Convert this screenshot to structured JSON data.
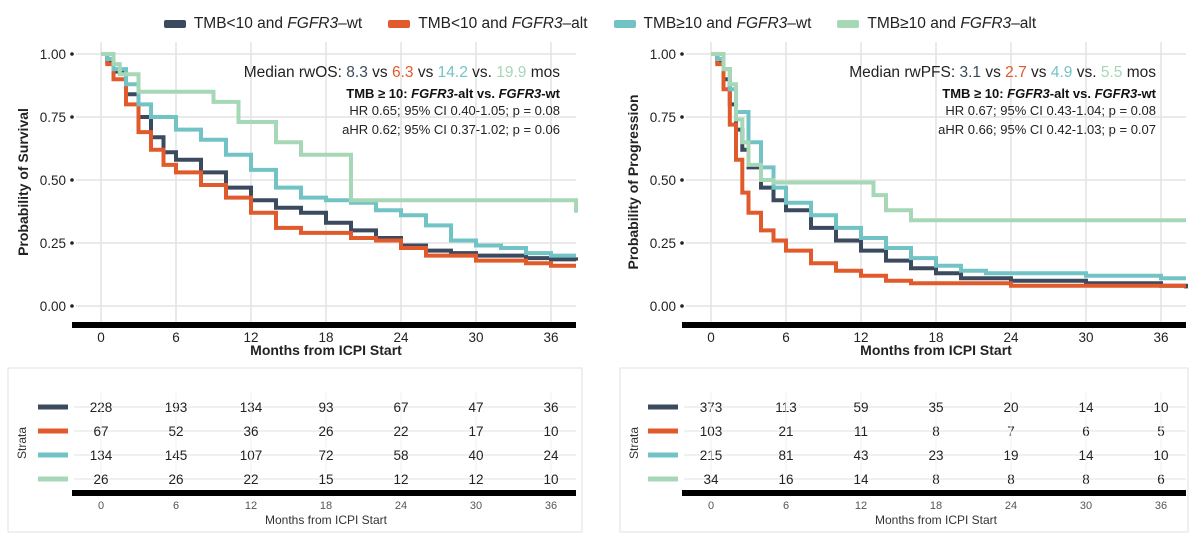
{
  "legend": {
    "items": [
      {
        "pre": "TMB<10 and ",
        "gene": "FGFR3",
        "post": "–wt",
        "color": "#3b4a5e"
      },
      {
        "pre": "TMB<10 and ",
        "gene": "FGFR3",
        "post": "–alt",
        "color": "#e15a2b"
      },
      {
        "pre": "TMB≥10 and ",
        "gene": "FGFR3",
        "post": "–wt",
        "color": "#72c3c6"
      },
      {
        "pre": "TMB≥10 and ",
        "gene": "FGFR3",
        "post": "–alt",
        "color": "#a6d7b6"
      }
    ]
  },
  "chart_data": [
    {
      "type": "line",
      "xlabel": "Months from ICPI Start",
      "ylabel": "Probability of Survival",
      "xlim": [
        -2,
        38
      ],
      "ylim": [
        0,
        1
      ],
      "xticks": [
        0,
        6,
        12,
        18,
        24,
        30,
        36
      ],
      "yticks": [
        0,
        0.25,
        0.5,
        0.75,
        1
      ],
      "ytick_labels": [
        "0.00",
        "0.25",
        "0.50",
        "0.75",
        "1.00"
      ],
      "grid": true,
      "annotation": {
        "median_prefix": "Median rwOS: ",
        "medians": [
          "8.3",
          "6.3",
          "14.2",
          "19.9"
        ],
        "separators": [
          " vs ",
          " vs ",
          " vs. "
        ],
        "suffix": " mos",
        "bold_line": {
          "pre": "TMB ≥ 10: ",
          "gene1": "FGFR3",
          "mid": "-alt vs. ",
          "gene2": "FGFR3",
          "post": "-wt"
        },
        "hr": "HR 0.65; 95% CI 0.40-1.05; p = 0.08",
        "ahr": "aHR 0.62; 95% CI 0.37-1.02; p = 0.06"
      },
      "series": [
        {
          "color": "#3b4a5e",
          "x": [
            0,
            0.5,
            1,
            2,
            3,
            4,
            5,
            6,
            8,
            10,
            12,
            14,
            16,
            18,
            20,
            22,
            24,
            26,
            28,
            30,
            32,
            34,
            36,
            38
          ],
          "y": [
            1,
            0.97,
            0.93,
            0.84,
            0.75,
            0.67,
            0.61,
            0.58,
            0.53,
            0.47,
            0.42,
            0.39,
            0.37,
            0.33,
            0.3,
            0.27,
            0.24,
            0.22,
            0.21,
            0.2,
            0.2,
            0.19,
            0.185,
            0.18
          ]
        },
        {
          "color": "#e15a2b",
          "x": [
            0,
            0.5,
            1,
            2,
            3,
            4,
            5,
            6,
            8,
            10,
            12,
            14,
            16,
            18,
            20,
            22,
            24,
            26,
            28,
            30,
            32,
            34,
            36,
            38
          ],
          "y": [
            1,
            0.96,
            0.9,
            0.8,
            0.69,
            0.62,
            0.56,
            0.53,
            0.48,
            0.43,
            0.37,
            0.31,
            0.29,
            0.29,
            0.27,
            0.26,
            0.23,
            0.2,
            0.2,
            0.18,
            0.18,
            0.17,
            0.16,
            0.16
          ]
        },
        {
          "color": "#72c3c6",
          "x": [
            0,
            0.5,
            1,
            2,
            3,
            4,
            6,
            8,
            10,
            12,
            14,
            16,
            18,
            20,
            22,
            24,
            26,
            28,
            30,
            32,
            34,
            36,
            38
          ],
          "y": [
            1,
            0.98,
            0.94,
            0.88,
            0.8,
            0.75,
            0.7,
            0.66,
            0.6,
            0.54,
            0.47,
            0.43,
            0.42,
            0.41,
            0.38,
            0.36,
            0.32,
            0.26,
            0.24,
            0.23,
            0.21,
            0.2,
            0.2
          ]
        },
        {
          "color": "#a6d7b6",
          "x": [
            0,
            0.5,
            1,
            1.5,
            3,
            4.5,
            9,
            11,
            14,
            16,
            20,
            22,
            24,
            26,
            28,
            30,
            32,
            34,
            36,
            37.5,
            38
          ],
          "y": [
            1,
            1,
            0.96,
            0.92,
            0.85,
            0.85,
            0.81,
            0.73,
            0.65,
            0.6,
            0.42,
            0.42,
            0.42,
            0.42,
            0.42,
            0.42,
            0.42,
            0.42,
            0.42,
            0.42,
            0.37
          ]
        }
      ]
    },
    {
      "type": "line",
      "xlabel": "Months from ICPI Start",
      "ylabel": "Probability of Progression",
      "xlim": [
        -2,
        38
      ],
      "ylim": [
        0,
        1
      ],
      "xticks": [
        0,
        6,
        12,
        18,
        24,
        30,
        36
      ],
      "yticks": [
        0,
        0.25,
        0.5,
        0.75,
        1
      ],
      "ytick_labels": [
        "0.00",
        "0.25",
        "0.50",
        "0.75",
        "1.00"
      ],
      "grid": true,
      "annotation": {
        "median_prefix": "Median rwPFS: ",
        "medians": [
          "3.1",
          "2.7",
          "4.9",
          "5.5"
        ],
        "separators": [
          " vs ",
          " vs ",
          " vs. "
        ],
        "suffix": " mos",
        "bold_line": {
          "pre": "TMB ≥ 10: ",
          "gene1": "FGFR3",
          "mid": "-alt vs. ",
          "gene2": "FGFR3",
          "post": "-wt"
        },
        "hr": "HR 0.67; 95% CI 0.43-1.04; p = 0.08",
        "ahr": "aHR 0.66; 95% CI 0.42-1.03; p = 0.07"
      },
      "series": [
        {
          "color": "#3b4a5e",
          "x": [
            0,
            0.5,
            1,
            1.5,
            2,
            2.5,
            3,
            4,
            5,
            6,
            8,
            10,
            12,
            14,
            16,
            18,
            20,
            24,
            30,
            36,
            38
          ],
          "y": [
            1,
            0.97,
            0.9,
            0.8,
            0.7,
            0.62,
            0.55,
            0.47,
            0.42,
            0.38,
            0.31,
            0.26,
            0.22,
            0.18,
            0.15,
            0.13,
            0.11,
            0.1,
            0.09,
            0.08,
            0.07
          ]
        },
        {
          "color": "#e15a2b",
          "x": [
            0,
            0.5,
            1,
            1.5,
            2,
            2.5,
            3,
            4,
            5,
            6,
            8,
            10,
            12,
            14,
            16,
            20,
            24,
            30,
            36,
            38
          ],
          "y": [
            1,
            0.96,
            0.86,
            0.72,
            0.58,
            0.45,
            0.37,
            0.3,
            0.26,
            0.22,
            0.17,
            0.14,
            0.12,
            0.1,
            0.09,
            0.09,
            0.08,
            0.08,
            0.08,
            0.08
          ]
        },
        {
          "color": "#72c3c6",
          "x": [
            0,
            0.5,
            1,
            1.5,
            2,
            3,
            4,
            5,
            6,
            8,
            10,
            12,
            14,
            16,
            18,
            20,
            22,
            24,
            30,
            36,
            38
          ],
          "y": [
            1,
            0.98,
            0.94,
            0.86,
            0.77,
            0.65,
            0.55,
            0.47,
            0.41,
            0.36,
            0.31,
            0.27,
            0.23,
            0.19,
            0.16,
            0.14,
            0.13,
            0.13,
            0.12,
            0.11,
            0.11
          ]
        },
        {
          "color": "#a6d7b6",
          "x": [
            0,
            0.5,
            1,
            1.5,
            2,
            2.5,
            3,
            4,
            5,
            6,
            8,
            10,
            12,
            13,
            14,
            16,
            20,
            24,
            30,
            36,
            38
          ],
          "y": [
            1,
            1,
            0.94,
            0.88,
            0.74,
            0.65,
            0.56,
            0.5,
            0.49,
            0.49,
            0.49,
            0.49,
            0.49,
            0.44,
            0.38,
            0.34,
            0.34,
            0.34,
            0.34,
            0.34,
            0.34
          ]
        }
      ]
    }
  ],
  "risk_tables": [
    {
      "ylabel": "Strata",
      "xlabel": "Months from ICPI Start",
      "xticks": [
        0,
        6,
        12,
        18,
        24,
        30,
        36
      ],
      "rows": [
        {
          "color": "#3b4a5e",
          "values": [
            228,
            193,
            134,
            93,
            67,
            47,
            36
          ]
        },
        {
          "color": "#e15a2b",
          "values": [
            67,
            52,
            36,
            26,
            22,
            17,
            10
          ]
        },
        {
          "color": "#72c3c6",
          "values": [
            134,
            145,
            107,
            72,
            58,
            40,
            24
          ]
        },
        {
          "color": "#a6d7b6",
          "values": [
            26,
            26,
            22,
            15,
            12,
            12,
            10
          ]
        }
      ]
    },
    {
      "ylabel": "Strata",
      "xlabel": "Months from ICPI Start",
      "xticks": [
        0,
        6,
        12,
        18,
        24,
        30,
        36
      ],
      "rows": [
        {
          "color": "#3b4a5e",
          "values": [
            373,
            113,
            59,
            35,
            20,
            14,
            10
          ]
        },
        {
          "color": "#e15a2b",
          "values": [
            103,
            21,
            11,
            8,
            7,
            6,
            5
          ]
        },
        {
          "color": "#72c3c6",
          "values": [
            215,
            81,
            43,
            23,
            19,
            14,
            10
          ]
        },
        {
          "color": "#a6d7b6",
          "values": [
            34,
            16,
            14,
            8,
            8,
            8,
            6
          ]
        }
      ]
    }
  ]
}
